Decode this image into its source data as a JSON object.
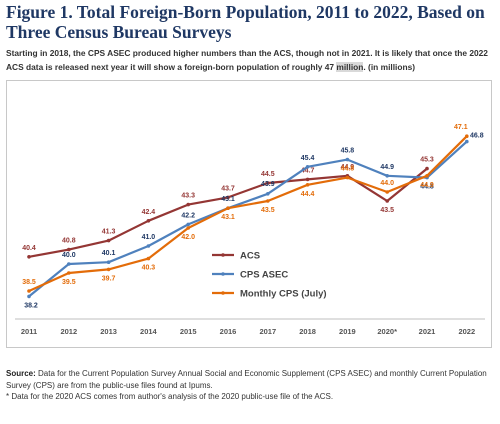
{
  "header": {
    "title": "Figure 1. Total Foreign-Born Population, 2011 to 2022, Based on Three Census Bureau Surveys",
    "subtitle_pre": "Starting in 2018, the CPS ASEC produced higher numbers than the ACS, though not in 2021. It is likely that once the 2022 ACS data is released next year it will show a foreign-born population of roughly 47 ",
    "subtitle_highlight": "million",
    "subtitle_post": ". (in millions)"
  },
  "footer": {
    "source_label": "Source:",
    "source_text": " Data for the Current Population Survey Annual Social and Economic Supplement (CPS ASEC) and monthly Current Population Survey (CPS) are from the public-use files found at Ipums.",
    "note": "* Data for the 2020 ACS comes from author's analysis of the 2020 public-use file of the ACS."
  },
  "chart_data": {
    "type": "line",
    "title": "",
    "xlabel": "",
    "ylabel": "",
    "ylim": [
      37.5,
      47.5
    ],
    "grid": false,
    "legend_position": "center",
    "categories": [
      "2011",
      "2012",
      "2013",
      "2014",
      "2015",
      "2016",
      "2017",
      "2018",
      "2019",
      "2020*",
      "2021",
      "2022"
    ],
    "series": [
      {
        "name": "ACS",
        "color": "#943634",
        "labels_on_ends": true,
        "values": [
          40.4,
          40.8,
          41.3,
          42.4,
          43.3,
          43.7,
          44.5,
          44.7,
          44.9,
          43.5,
          45.3,
          null
        ],
        "labels": [
          "40.4",
          "40.8",
          "41.3",
          "42.4",
          "43.3",
          "43.7",
          "44.5",
          "44.7",
          "44.9",
          "43.5",
          "45.3",
          ""
        ]
      },
      {
        "name": "CPS ASEC",
        "color": "#4f81bd",
        "values": [
          38.2,
          40.0,
          40.1,
          41.0,
          42.2,
          43.1,
          43.9,
          45.4,
          45.8,
          44.9,
          44.8,
          46.8
        ],
        "labels": [
          "38.2",
          "40.0",
          "40.1",
          "41.0",
          "42.2",
          "43.1",
          "43.9",
          "45.4",
          "45.8",
          "44.9",
          "44.8",
          "46.8"
        ]
      },
      {
        "name": "Monthly CPS (July)",
        "color": "#e36c09",
        "values": [
          38.5,
          39.5,
          39.7,
          40.3,
          42.0,
          43.1,
          43.5,
          44.4,
          44.8,
          44.0,
          44.9,
          47.1
        ],
        "labels": [
          "38.5",
          "39.5",
          "39.7",
          "40.3",
          "42.0",
          "43.1",
          "43.5",
          "44.4",
          "44.8",
          "44.0",
          "44.9",
          "47.1"
        ]
      }
    ]
  }
}
